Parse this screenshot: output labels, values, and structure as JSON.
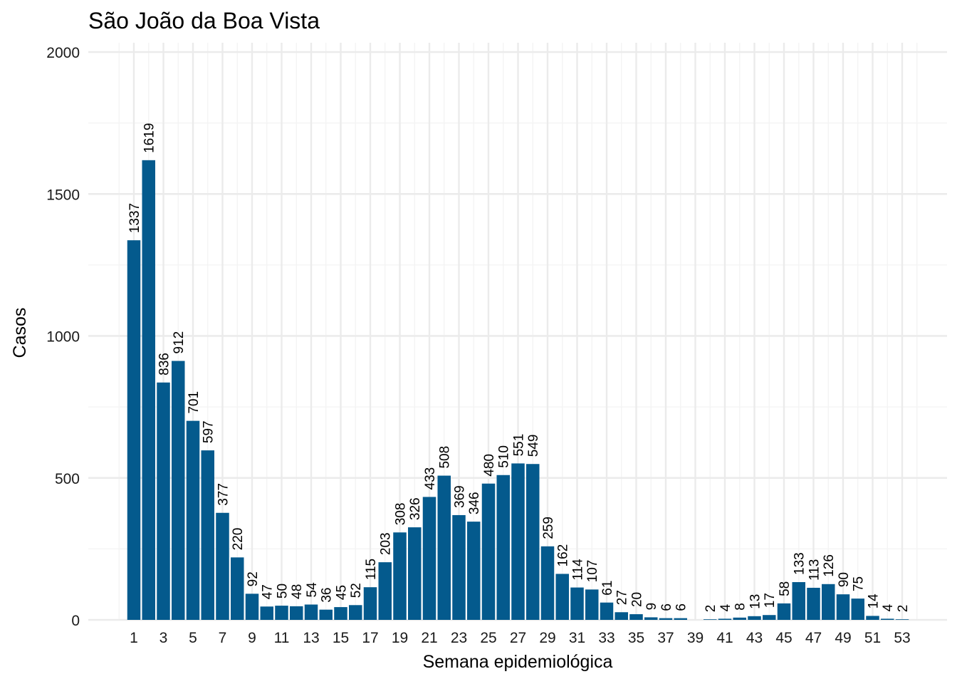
{
  "chart_data": {
    "type": "bar",
    "title": "São João da Boa Vista",
    "xlabel": "Semana epidemiológica",
    "ylabel": "Casos",
    "ylim": [
      0,
      2000
    ],
    "xlim": [
      1,
      53
    ],
    "yticks": [
      0,
      500,
      1000,
      1500,
      2000
    ],
    "xticks": [
      1,
      3,
      5,
      7,
      9,
      11,
      13,
      15,
      17,
      19,
      21,
      23,
      25,
      27,
      29,
      31,
      33,
      35,
      37,
      39,
      41,
      43,
      45,
      47,
      49,
      51,
      53
    ],
    "grid": true,
    "legend": "none",
    "colors": {
      "bar": "#045a8d"
    },
    "bars": [
      {
        "x": 1,
        "value": 1337
      },
      {
        "x": 2,
        "value": 1619
      },
      {
        "x": 3,
        "value": 836
      },
      {
        "x": 4,
        "value": 912
      },
      {
        "x": 5,
        "value": 701
      },
      {
        "x": 6,
        "value": 597
      },
      {
        "x": 7,
        "value": 377
      },
      {
        "x": 8,
        "value": 220
      },
      {
        "x": 9,
        "value": 92
      },
      {
        "x": 10,
        "value": 47
      },
      {
        "x": 11,
        "value": 50
      },
      {
        "x": 12,
        "value": 48
      },
      {
        "x": 13,
        "value": 54
      },
      {
        "x": 14,
        "value": 36
      },
      {
        "x": 15,
        "value": 45
      },
      {
        "x": 16,
        "value": 52
      },
      {
        "x": 17,
        "value": 115
      },
      {
        "x": 18,
        "value": 203
      },
      {
        "x": 19,
        "value": 308
      },
      {
        "x": 20,
        "value": 326
      },
      {
        "x": 21,
        "value": 433
      },
      {
        "x": 22,
        "value": 508
      },
      {
        "x": 23,
        "value": 369
      },
      {
        "x": 24,
        "value": 346
      },
      {
        "x": 25,
        "value": 480
      },
      {
        "x": 26,
        "value": 510
      },
      {
        "x": 27,
        "value": 551
      },
      {
        "x": 28,
        "value": 549
      },
      {
        "x": 29,
        "value": 259
      },
      {
        "x": 30,
        "value": 162
      },
      {
        "x": 31,
        "value": 114
      },
      {
        "x": 32,
        "value": 107
      },
      {
        "x": 33,
        "value": 61
      },
      {
        "x": 34,
        "value": 27
      },
      {
        "x": 35,
        "value": 20
      },
      {
        "x": 36,
        "value": 9
      },
      {
        "x": 37,
        "value": 6
      },
      {
        "x": 38,
        "value": 6
      },
      {
        "x": 40,
        "value": 2
      },
      {
        "x": 41,
        "value": 4
      },
      {
        "x": 42,
        "value": 8
      },
      {
        "x": 43,
        "value": 13
      },
      {
        "x": 44,
        "value": 17
      },
      {
        "x": 45,
        "value": 58
      },
      {
        "x": 46,
        "value": 133
      },
      {
        "x": 47,
        "value": 113
      },
      {
        "x": 48,
        "value": 126
      },
      {
        "x": 49,
        "value": 90
      },
      {
        "x": 50,
        "value": 75
      },
      {
        "x": 51,
        "value": 14
      },
      {
        "x": 52,
        "value": 4
      },
      {
        "x": 53,
        "value": 2
      }
    ]
  }
}
